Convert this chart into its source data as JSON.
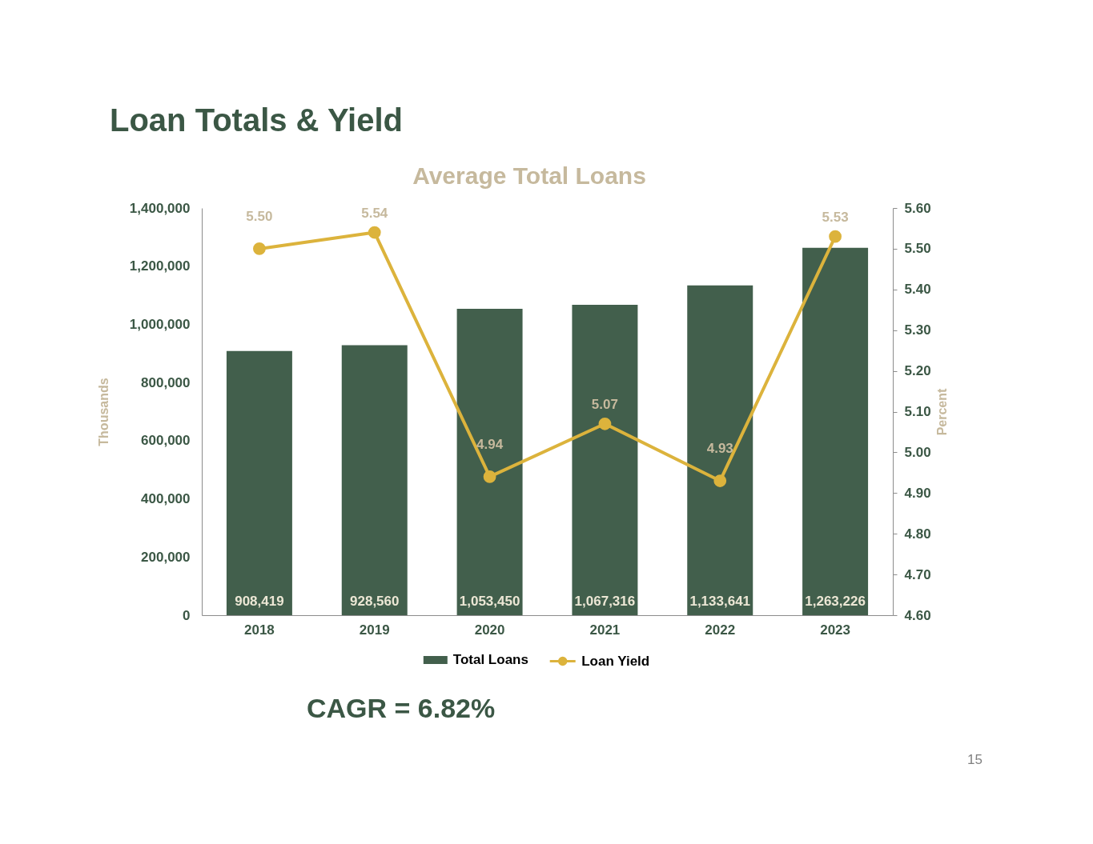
{
  "chart_data": {
    "type": "bar",
    "title": "Loan Totals & Yield",
    "subtitle": "Average Total Loans",
    "ylabel": "Thousands",
    "y2label": "Percent",
    "categories": [
      "2018",
      "2019",
      "2020",
      "2021",
      "2022",
      "2023"
    ],
    "series": [
      {
        "name": "Total Loans",
        "color": "#425f4c",
        "values": [
          908419,
          928560,
          1053450,
          1067316,
          1133641,
          1263226
        ],
        "value_labels": [
          "908,419",
          "928,560",
          "1,053,450",
          "1,067,316",
          "1,133,641",
          "1,263,226"
        ]
      },
      {
        "name": "Loan Yield",
        "type": "line",
        "axis": "y2",
        "color": "#dcb33c",
        "values": [
          5.5,
          5.54,
          4.94,
          5.07,
          4.93,
          5.53
        ],
        "value_labels": [
          "5.50",
          "5.54",
          "4.94",
          "5.07",
          "4.93",
          "5.53"
        ]
      }
    ],
    "ylim": [
      0,
      1400000
    ],
    "yticks": [
      0,
      {
        "value": 200000,
        "label": "200,000"
      },
      {
        "value": 400000,
        "label": "400,000"
      },
      {
        "value": 600000,
        "label": "600,000"
      },
      {
        "value": 800000,
        "label": "800,000"
      },
      {
        "value": 1000000,
        "label": "1,000,000"
      },
      {
        "value": 1200000,
        "label": "1,200,000"
      },
      {
        "value": 1400000,
        "label": "1,400,000"
      }
    ],
    "y2lim": [
      4.6,
      5.6
    ],
    "y2ticks": [
      {
        "value": 4.6,
        "label": "4.60"
      },
      {
        "value": 4.7,
        "label": "4.70"
      },
      {
        "value": 4.8,
        "label": "4.80"
      },
      {
        "value": 4.9,
        "label": "4.90"
      },
      {
        "value": 5.0,
        "label": "5.00"
      },
      {
        "value": 5.1,
        "label": "5.10"
      },
      {
        "value": 5.2,
        "label": "5.20"
      },
      {
        "value": 5.3,
        "label": "5.30"
      },
      {
        "value": 5.4,
        "label": "5.40"
      },
      {
        "value": 5.5,
        "label": "5.50"
      },
      {
        "value": 5.6,
        "label": "5.60"
      }
    ],
    "grid": false,
    "legend": "bottom",
    "marker": "circle",
    "line_style": "solid",
    "annotations": [
      "CAGR = 6.82%",
      "15"
    ]
  }
}
